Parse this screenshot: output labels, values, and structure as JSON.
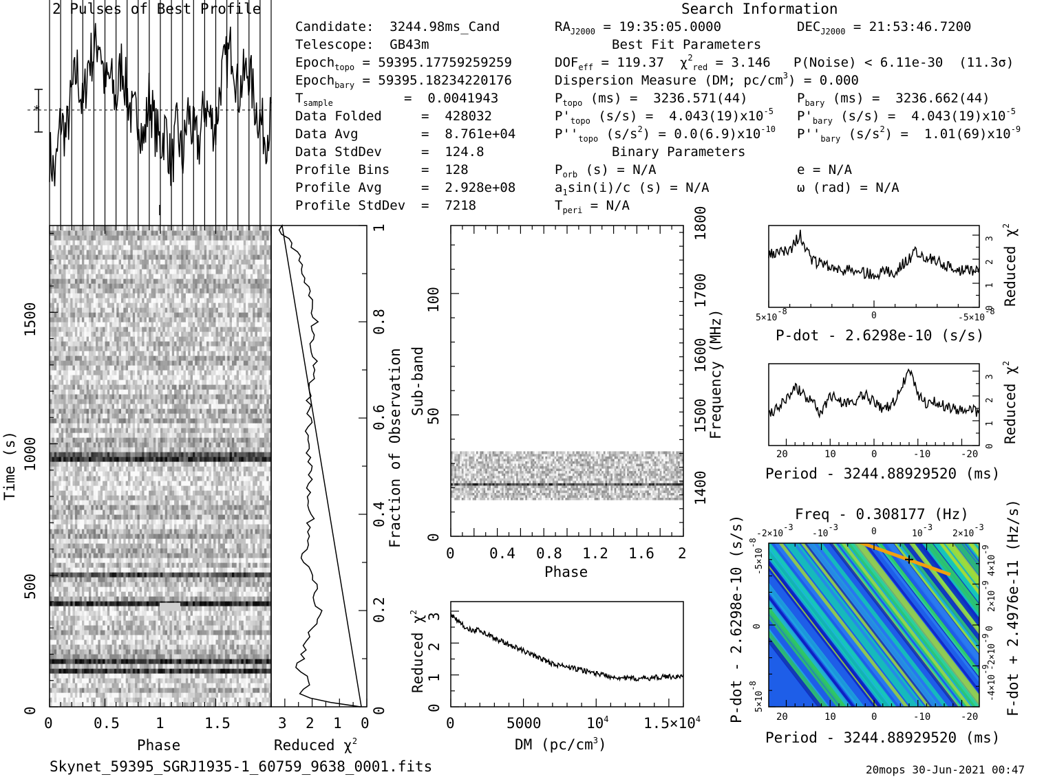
{
  "header": {
    "profile_title": "2 Pulses of Best Profile",
    "search_title": "Search Information"
  },
  "info": {
    "candidate": "Candidate:  3244.98ms_Cand",
    "telescope": "Telescope:  GB43m",
    "epoch_topo_label": "Epoch",
    "epoch_topo_sub": "topo",
    "epoch_topo_val": " = 59395.17759259259",
    "epoch_bary_label": "Epoch",
    "epoch_bary_sub": "bary",
    "epoch_bary_val": " = 59395.18234220176",
    "tsample_label": "T",
    "tsample_sub": "sample",
    "tsample_val": "=  0.0041943",
    "data_folded": "Data Folded     =  428032",
    "data_avg": "Data Avg        =  8.761e+04",
    "data_stddev": "Data StdDev     =  124.8",
    "profile_bins": "Profile Bins    =  128",
    "profile_avg": "Profile Avg     =  2.928e+08",
    "profile_stddev": "Profile StdDev  =  7218"
  },
  "search": {
    "ra_label": "RA",
    "ra_sub": "J2000",
    "ra_val": " = 19:35:05.0000",
    "dec_label": "DEC",
    "dec_sub": "J2000",
    "dec_val": " = 21:53:46.7200",
    "best_fit": "Best Fit Parameters",
    "dof_label": "DOF",
    "dof_sub": "eff",
    "dof_val": " = 119.37  ",
    "chi_sym": "χ",
    "chi_sup": "2",
    "chi_sub": "red",
    "chi_val": " = 3.146",
    "pnoise": "P(Noise) < 6.11e-30  (11.3σ)",
    "dm_a": "Dispersion Measure (DM; pc/cm",
    "dm_sup": "3",
    "dm_b": ") = 0.000",
    "ptopo_label": "P",
    "ptopo_sub": "topo",
    "ptopo_val": " (ms) =  3236.571(44)",
    "pbary_label": "P",
    "pbary_sub": "bary",
    "pbary_val": " (ms) =  3236.662(44)",
    "pdtopo_label": "P'",
    "pdtopo_sub": "topo",
    "pdtopo_val": " (s/s) =  4.043(19)x10",
    "pdtopo_exp": "-5",
    "pdbary_label": "P'",
    "pdbary_sub": "bary",
    "pdbary_val": " (s/s) =  4.043(19)x10",
    "pdbary_exp": "-5",
    "pddtopo_label": "P''",
    "pddtopo_sub": "topo",
    "pddtopo_a": " (s/s",
    "pddtopo_sup": "2",
    "pddtopo_b": ") = 0.0(6.9)x10",
    "pddtopo_exp": "-10",
    "pddbary_label": "P''",
    "pddbary_sub": "bary",
    "pddbary_a": " (s/s",
    "pddbary_sup": "2",
    "pddbary_b": ") =  1.01(69)x10",
    "pddbary_exp": "-9",
    "binary": "Binary Parameters",
    "porb_label": "P",
    "porb_sub": "orb",
    "porb_val": " (s) = N/A",
    "ecc": "e = N/A",
    "a1_label": "a",
    "a1_sub": "1",
    "a1_val": "sin(i)/c (s) = N/A",
    "omega": "ω (rad) = N/A",
    "tperi_label": "T",
    "tperi_sub": "peri",
    "tperi_val": " = N/A"
  },
  "footer": {
    "filename": "Skynet_59395_SGRJ1935-1_60759_9638_0001.fits",
    "stamp": "20mops 30-Jun-2021 00:47"
  },
  "chart_data": [
    {
      "id": "profile",
      "type": "line",
      "title": "2 Pulses of Best Profile",
      "x": [
        0,
        0.05,
        0.1,
        0.15,
        0.2,
        0.25,
        0.3,
        0.35,
        0.4,
        0.45,
        0.5,
        0.55,
        0.6,
        0.65,
        0.7,
        0.75,
        0.8,
        0.85,
        0.9,
        0.95,
        1.0,
        1.05,
        1.1,
        1.15,
        1.2,
        1.25,
        1.3,
        1.35,
        1.4,
        1.45,
        1.5,
        1.55,
        1.6,
        1.65,
        1.7,
        1.75,
        1.8,
        1.85,
        1.9,
        1.95,
        2.0
      ],
      "y": [
        0.25,
        0.1,
        0.45,
        0.35,
        0.6,
        0.75,
        0.5,
        0.8,
        0.85,
        0.95,
        0.65,
        0.7,
        0.55,
        0.8,
        0.6,
        0.45,
        0.5,
        0.3,
        0.6,
        0.4,
        0.3,
        0.4,
        0.15,
        0.4,
        0.2,
        0.5,
        0.35,
        0.3,
        0.55,
        0.45,
        0.4,
        0.7,
        0.8,
        0.9,
        0.6,
        0.7,
        0.75,
        0.55,
        0.45,
        0.35,
        0.45
      ],
      "xlim": [
        0,
        2
      ]
    },
    {
      "id": "time_phase",
      "type": "heatmap",
      "xlabel": "Phase",
      "ylabel": "Time (s)",
      "x_ticks": [
        "0",
        "0.5",
        "1",
        "1.5"
      ],
      "y_ticks": [
        "0",
        "500",
        "1000",
        "1500"
      ],
      "xlim": [
        0,
        2
      ],
      "ylim": [
        0,
        1830
      ],
      "dark_bands_time_s": [
        120,
        170,
        380,
        500,
        930,
        950
      ]
    },
    {
      "id": "time_chi2",
      "type": "line",
      "xlabel": "Reduced",
      "xlabel_sym": "χ",
      "xlabel_sup": "2",
      "ylabel_right": "Fraction of Observation",
      "x_ticks": [
        "3",
        "2",
        "1",
        "0"
      ],
      "y_ticks": [
        "0",
        "0.2",
        "0.4",
        "0.6",
        "0.8",
        "1"
      ],
      "xlim": [
        3.5,
        0
      ],
      "ylim": [
        0,
        1
      ],
      "fraction": [
        0.0,
        0.01,
        0.02,
        0.03,
        0.05,
        0.08,
        0.12,
        0.15,
        0.18,
        0.2,
        0.22,
        0.25,
        0.3,
        0.35,
        0.4,
        0.45,
        0.5,
        0.55,
        0.6,
        0.65,
        0.7,
        0.75,
        0.8,
        0.85,
        0.9,
        0.95,
        0.98,
        1.0
      ],
      "chi2": [
        0.3,
        1.5,
        2.2,
        2.4,
        2.0,
        2.5,
        2.3,
        2.1,
        1.9,
        1.7,
        2.0,
        1.9,
        2.3,
        2.2,
        2.0,
        2.1,
        2.0,
        2.2,
        2.1,
        2.1,
        1.9,
        2.0,
        1.9,
        2.1,
        2.3,
        2.6,
        3.0,
        3.2
      ]
    },
    {
      "id": "subband_phase",
      "type": "heatmap",
      "xlabel": "Phase",
      "ylabel": "Sub-band",
      "ylabel_right": "Frequency (MHz)",
      "x_ticks": [
        "0",
        "0.4",
        "0.8",
        "1.2",
        "1.6",
        "2"
      ],
      "y_ticks": [
        "0",
        "50",
        "100"
      ],
      "freq_ticks": [
        "1400",
        "1500",
        "1600",
        "1700",
        "1800"
      ],
      "xlim": [
        0,
        2
      ],
      "ylim": [
        0,
        128
      ],
      "freq_lim": [
        1350,
        1800
      ],
      "active_subbands": [
        15,
        35
      ]
    },
    {
      "id": "dm_chi2",
      "type": "line",
      "xlabel": "DM (pc/cm",
      "xlabel_sup": "3",
      "xlabel_end": ")",
      "ylabel": "Reduced",
      "ylabel_sym": "χ",
      "ylabel_sup": "2",
      "x_ticks": [
        "0",
        "5000",
        "10",
        "1.5×10"
      ],
      "x_tick_exps": [
        "",
        "",
        "4",
        "4"
      ],
      "y_ticks": [
        "0",
        "1",
        "2",
        "3"
      ],
      "xlim": [
        0,
        16000
      ],
      "ylim": [
        0,
        3.3
      ],
      "x": [
        0,
        500,
        1000,
        1500,
        2000,
        3000,
        4000,
        5000,
        6000,
        7000,
        8000,
        9000,
        10000,
        11000,
        12000,
        13000,
        14000,
        15000,
        16000
      ],
      "y": [
        2.9,
        2.7,
        2.5,
        2.4,
        2.4,
        2.15,
        1.95,
        1.75,
        1.55,
        1.35,
        1.25,
        1.15,
        1.05,
        0.95,
        0.9,
        0.88,
        0.92,
        0.95,
        0.95
      ]
    },
    {
      "id": "pdot_chi2",
      "type": "line",
      "xlabel": "P-dot - 2.6298e-10 (s/s)",
      "ylabel_right": "Reduced",
      "ylabel_sym": "χ",
      "ylabel_sup": "2",
      "x_ticks": [
        "5×10",
        "0",
        "-5×10"
      ],
      "x_tick_exps": [
        "-8",
        "",
        "-8"
      ],
      "y_ticks": [
        "0",
        "1",
        "2",
        "3"
      ],
      "xlim": [
        5e-08,
        -5e-08
      ],
      "ylim": [
        0,
        3.4
      ],
      "x": [
        5e-08,
        4e-08,
        3.5e-08,
        3e-08,
        2e-08,
        1e-08,
        0,
        -1e-08,
        -2e-08,
        -3e-08,
        -4e-08,
        -5e-08
      ],
      "y": [
        2.2,
        2.4,
        3.0,
        2.0,
        1.6,
        1.5,
        1.4,
        1.5,
        2.3,
        1.9,
        1.5,
        1.6
      ]
    },
    {
      "id": "period_chi2",
      "type": "line",
      "xlabel": "Period - 3244.88929520 (ms)",
      "ylabel_right": "Reduced",
      "ylabel_sym": "χ",
      "ylabel_sup": "2",
      "x_ticks": [
        "20",
        "10",
        "0",
        "-10",
        "-20"
      ],
      "y_ticks": [
        "0",
        "1",
        "2",
        "3"
      ],
      "xlim": [
        24,
        -24
      ],
      "ylim": [
        0,
        3.3
      ],
      "x": [
        24,
        20,
        18,
        16,
        14,
        12,
        10,
        8,
        6,
        4,
        2,
        0,
        -2,
        -4,
        -6,
        -8,
        -10,
        -12,
        -14,
        -16,
        -18,
        -20,
        -22,
        -24
      ],
      "y": [
        1.2,
        1.9,
        2.4,
        2.0,
        1.7,
        1.3,
        2.0,
        1.8,
        1.7,
        1.8,
        2.1,
        1.7,
        1.5,
        1.6,
        2.2,
        3.1,
        2.0,
        1.7,
        1.8,
        1.6,
        1.5,
        1.4,
        1.5,
        1.3
      ]
    },
    {
      "id": "p_pdot",
      "type": "heatmap",
      "title": "Freq - 0.308177 (Hz)",
      "xlabel": "Period - 3244.88929520 (ms)",
      "ylabel": "P-dot - 2.6298e-10 (s/s)",
      "ylabel_right": "F-dot + 2.4976e-11 (Hz/s)",
      "x_ticks": [
        "20",
        "10",
        "0",
        "-10",
        "-20"
      ],
      "top_ticks": [
        "-2×10",
        "-10",
        "0",
        "10",
        "2×10"
      ],
      "top_tick_exps": [
        "-3",
        "-3",
        "",
        "-3",
        "-3"
      ],
      "y_ticks": [
        "5×10",
        "0",
        "-5×10"
      ],
      "y_tick_exps": [
        "-8",
        "",
        "-8"
      ],
      "right_ticks": [
        "-4×10",
        "-2×10",
        "0",
        "2×10",
        "4×10"
      ],
      "right_tick_exps": [
        "-9",
        "-9",
        "",
        "-9",
        "-9"
      ],
      "xlim": [
        24,
        -24
      ],
      "ylim": [
        5e-08,
        -5e-08
      ],
      "best": {
        "period_ms": -8,
        "pdot": 4e-08
      }
    }
  ]
}
